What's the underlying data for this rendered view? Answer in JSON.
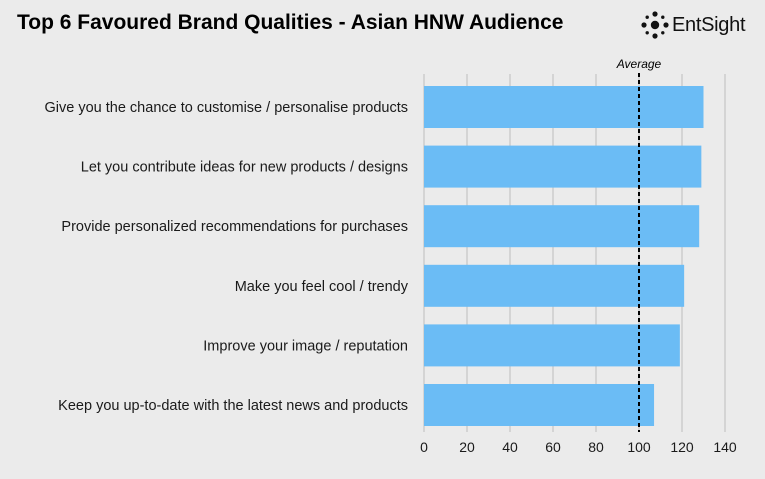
{
  "brand": {
    "name": "EntSight"
  },
  "colors": {
    "bar": "#6bbcf5",
    "background": "#ebebeb",
    "grid": "#bcbcbc",
    "text": "#1a1a1a"
  },
  "chart_data": {
    "type": "bar",
    "orientation": "horizontal",
    "title": "Top 6 Favoured Brand Qualities - Asian HNW Audience",
    "xlabel": "",
    "ylabel": "",
    "categories": [
      "Give you the chance to customise / personalise products",
      "Let you contribute ideas for new products / designs",
      "Provide personalized recommendations for purchases",
      "Make you feel cool / trendy",
      "Improve your image / reputation",
      "Keep you up-to-date with the latest news and products"
    ],
    "values": [
      130,
      129,
      128,
      121,
      119,
      107
    ],
    "xlim": [
      0,
      140
    ],
    "xticks": [
      0,
      20,
      40,
      60,
      80,
      100,
      120,
      140
    ],
    "grid": true,
    "reference_line": {
      "label": "Average",
      "value": 100,
      "style": "dashed"
    }
  }
}
